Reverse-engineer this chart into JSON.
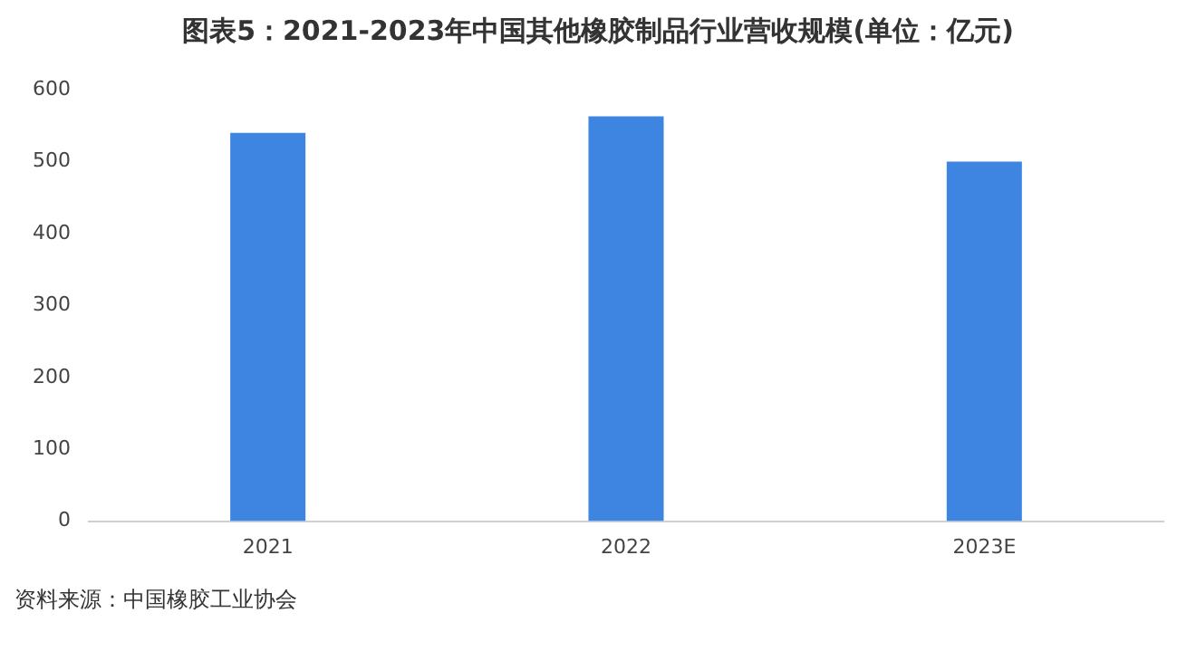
{
  "chart_data": {
    "type": "bar",
    "title": "图表5：2021-2023年中国其他橡胶制品行业营收规模(单位：亿元)",
    "categories": [
      "2021",
      "2022",
      "2023E"
    ],
    "values": [
      540,
      563,
      500
    ],
    "color": "#3d85e0",
    "ylim": [
      0,
      600
    ],
    "yticks": [
      0,
      100,
      200,
      300,
      400,
      500,
      600
    ],
    "grid": false,
    "legend": false,
    "annotations": [
      "资料来源：中国橡胶工业协会"
    ]
  }
}
